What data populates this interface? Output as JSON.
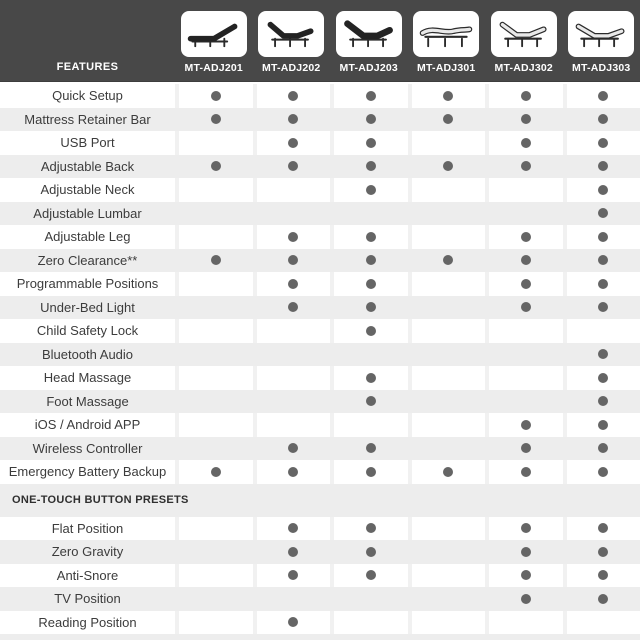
{
  "header": {
    "features_label": "FEATURES",
    "models": [
      {
        "name": "MT-ADJ201",
        "icon": "bed-dark-head-incline-icon"
      },
      {
        "name": "MT-ADJ202",
        "icon": "bed-dark-head-foot-raised-icon"
      },
      {
        "name": "MT-ADJ203",
        "icon": "bed-dark-contour-icon"
      },
      {
        "name": "MT-ADJ301",
        "icon": "bed-light-gentle-wave-icon"
      },
      {
        "name": "MT-ADJ302",
        "icon": "bed-light-head-foot-raised-icon"
      },
      {
        "name": "MT-ADJ303",
        "icon": "bed-light-contour-icon"
      }
    ]
  },
  "colors": {
    "header_bg": "#484848",
    "row_alt_bg": "#ededed",
    "dot": "#656565",
    "feature_text": "#3c3c3c",
    "header_text": "#ffffff"
  },
  "table": {
    "rows": [
      {
        "type": "feature",
        "label": "Quick Setup",
        "dots": [
          1,
          1,
          1,
          1,
          1,
          1
        ]
      },
      {
        "type": "feature",
        "label": "Mattress Retainer Bar",
        "dots": [
          1,
          1,
          1,
          1,
          1,
          1
        ]
      },
      {
        "type": "feature",
        "label": "USB Port",
        "dots": [
          0,
          1,
          1,
          0,
          1,
          1
        ]
      },
      {
        "type": "feature",
        "label": "Adjustable Back",
        "dots": [
          1,
          1,
          1,
          1,
          1,
          1
        ]
      },
      {
        "type": "feature",
        "label": "Adjustable Neck",
        "dots": [
          0,
          0,
          1,
          0,
          0,
          1
        ]
      },
      {
        "type": "feature",
        "label": "Adjustable Lumbar",
        "dots": [
          0,
          0,
          0,
          0,
          0,
          1
        ]
      },
      {
        "type": "feature",
        "label": "Adjustable Leg",
        "dots": [
          0,
          1,
          1,
          0,
          1,
          1
        ]
      },
      {
        "type": "feature",
        "label": "Zero Clearance**",
        "dots": [
          1,
          1,
          1,
          1,
          1,
          1
        ]
      },
      {
        "type": "feature",
        "label": "Programmable Positions",
        "dots": [
          0,
          1,
          1,
          0,
          1,
          1
        ]
      },
      {
        "type": "feature",
        "label": "Under-Bed Light",
        "dots": [
          0,
          1,
          1,
          0,
          1,
          1
        ]
      },
      {
        "type": "feature",
        "label": "Child Safety Lock",
        "dots": [
          0,
          0,
          1,
          0,
          0,
          0
        ]
      },
      {
        "type": "feature",
        "label": "Bluetooth Audio",
        "dots": [
          0,
          0,
          0,
          0,
          0,
          1
        ]
      },
      {
        "type": "feature",
        "label": "Head Massage",
        "dots": [
          0,
          0,
          1,
          0,
          0,
          1
        ]
      },
      {
        "type": "feature",
        "label": "Foot Massage",
        "dots": [
          0,
          0,
          1,
          0,
          0,
          1
        ]
      },
      {
        "type": "feature",
        "label": "iOS / Android APP",
        "dots": [
          0,
          0,
          0,
          0,
          1,
          1
        ]
      },
      {
        "type": "feature",
        "label": "Wireless Controller",
        "dots": [
          0,
          1,
          1,
          0,
          1,
          1
        ]
      },
      {
        "type": "feature",
        "label": "Emergency Battery Backup",
        "dots": [
          1,
          1,
          1,
          1,
          1,
          1
        ]
      },
      {
        "type": "section",
        "label": "ONE-TOUCH BUTTON PRESETS"
      },
      {
        "type": "feature",
        "label": "Flat Position",
        "dots": [
          0,
          1,
          1,
          0,
          1,
          1
        ]
      },
      {
        "type": "feature",
        "label": "Zero Gravity",
        "dots": [
          0,
          1,
          1,
          0,
          1,
          1
        ]
      },
      {
        "type": "feature",
        "label": "Anti-Snore",
        "dots": [
          0,
          1,
          1,
          0,
          1,
          1
        ]
      },
      {
        "type": "feature",
        "label": "TV Position",
        "dots": [
          0,
          0,
          0,
          0,
          1,
          1
        ]
      },
      {
        "type": "feature",
        "label": "Reading Position",
        "dots": [
          0,
          1,
          0,
          0,
          0,
          0
        ]
      }
    ]
  }
}
